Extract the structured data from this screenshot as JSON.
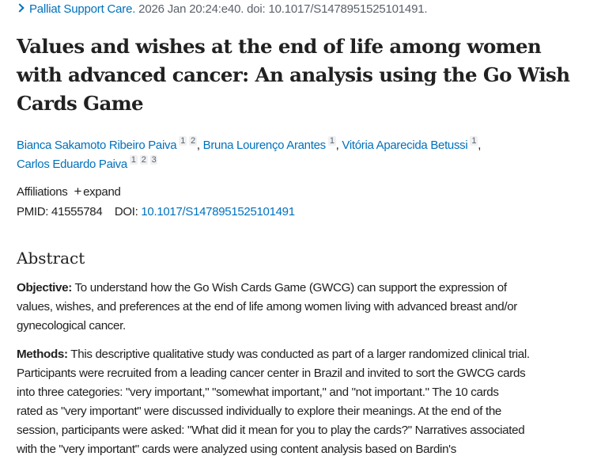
{
  "citation": {
    "journal": "Palliat Support Care.",
    "rest": " 2026 Jan 20:24:e40. doi: 10.1017/S1478951525101491."
  },
  "title_lines": [
    "Values and wishes at the end of life among women",
    "with advanced cancer: An analysis using the Go Wish",
    "Cards Game"
  ],
  "authors": [
    {
      "name": "Bianca Sakamoto Ribeiro Paiva",
      "affs": [
        "1",
        "2"
      ]
    },
    {
      "name": "Bruna Lourenço Arantes",
      "affs": [
        "1"
      ]
    },
    {
      "name": "Vitória Aparecida Betussi",
      "affs": [
        "1"
      ]
    },
    {
      "name": "Carlos Eduardo Paiva",
      "affs": [
        "1",
        "2",
        "3"
      ]
    }
  ],
  "affiliations": {
    "label": "Affiliations",
    "expand": "expand"
  },
  "ids": {
    "pmid_label": "PMID:",
    "pmid": "41555784",
    "doi_label": "DOI:",
    "doi": "10.1017/S1478951525101491"
  },
  "abstract": {
    "heading": "Abstract",
    "objective_label": "Objective:",
    "objective_lines": [
      " To understand how the Go Wish Cards Game (GWCG) can support the expression of",
      "values, wishes, and preferences at the end of life among women living with advanced breast and/or",
      "gynecological cancer."
    ],
    "methods_label": "Methods:",
    "methods_lines": [
      " This descriptive qualitative study was conducted as part of a larger randomized clinical trial.",
      "Participants were recruited from a leading cancer center in Brazil and invited to sort the GWCG cards",
      "into three categories: \"very important,\" \"somewhat important,\" and \"not important.\" The 10 cards",
      "rated as \"very important\" were discussed individually to explore their meanings. At the end of the",
      "session, participants were asked: \"What did it mean for you to play the cards?\" Narratives associated",
      "with the \"very important\" cards were analyzed using content analysis based on Bardin's"
    ]
  }
}
